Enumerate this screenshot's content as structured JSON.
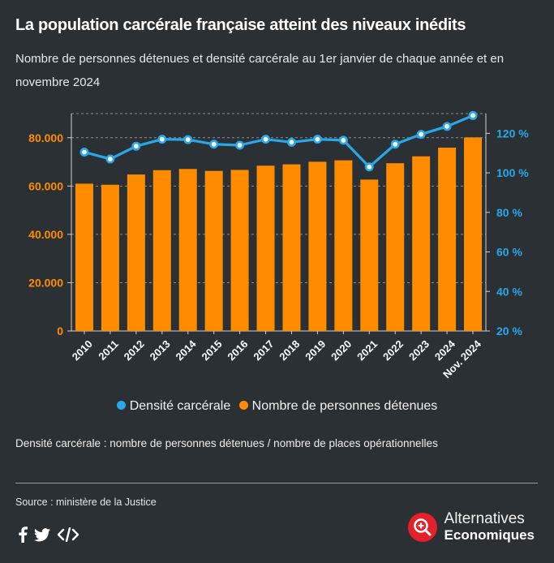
{
  "header": {
    "title": "La population carcérale française atteint des niveaux inédits",
    "subtitle": "Nombre de personnes détenues et densité carcérale au 1er janvier de chaque année et en novembre 2024"
  },
  "colors": {
    "bars": "#ff8c00",
    "line": "#29a8e8",
    "background": "#2b3034",
    "grid": "#8a8f93"
  },
  "chart_data": {
    "type": "bar+line",
    "categories": [
      "2010",
      "2011",
      "2012",
      "2013",
      "2014",
      "2015",
      "2016",
      "2017",
      "2018",
      "2019",
      "2020",
      "2021",
      "2022",
      "2023",
      "2024",
      "Nov. 2024"
    ],
    "series": [
      {
        "name": "Nombre de personnes détenues",
        "type": "bar",
        "axis": "left",
        "values": [
          60978,
          60544,
          64787,
          66572,
          67075,
          66270,
          66678,
          68432,
          68974,
          70059,
          70651,
          62673,
          69448,
          72294,
          75897,
          80130
        ]
      },
      {
        "name": "Densité carcérale",
        "type": "line",
        "axis": "right",
        "values": [
          110.5,
          107.0,
          113.5,
          117.0,
          116.8,
          114.5,
          114.0,
          117.0,
          115.5,
          117.0,
          116.5,
          103.0,
          114.5,
          119.5,
          123.5,
          129.0
        ]
      }
    ],
    "y_left": {
      "min": 0,
      "max": 90000,
      "ticks": [
        0,
        20000,
        40000,
        60000,
        80000
      ],
      "tick_labels": [
        "0",
        "20.000",
        "40.000",
        "60.000",
        "80.000"
      ]
    },
    "y_right": {
      "min": 20,
      "max": 130,
      "ticks": [
        20,
        40,
        60,
        80,
        100,
        120
      ],
      "tick_labels": [
        "20 %",
        "40 %",
        "60 %",
        "80 %",
        "100 %",
        "120 %"
      ]
    },
    "grid": "horizontal-dashed",
    "legend": {
      "position": "bottom-center",
      "items": [
        "Densité carcérale",
        "Nombre de personnes détenues"
      ]
    }
  },
  "note": "Densité carcérale : nombre de personnes détenues / nombre de places opérationnelles",
  "source": "Source : ministère de la Justice",
  "footer": {
    "social_icons": [
      "facebook-icon",
      "twitter-icon",
      "embed-code-icon"
    ],
    "brand_line1": "Alternatives",
    "brand_line2": "Economiques"
  }
}
